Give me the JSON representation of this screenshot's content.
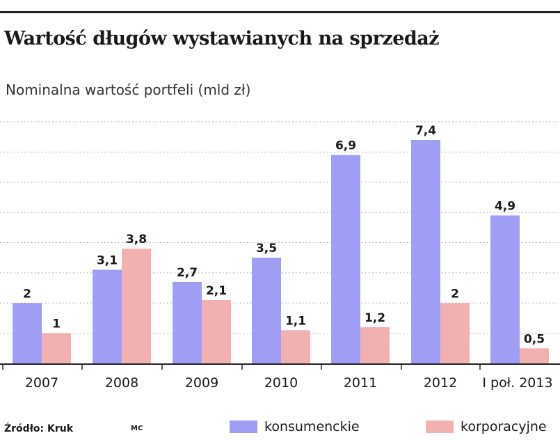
{
  "title": "Wartość długów wystawianych na sprzedaż",
  "subtitle": "Nominalna wartość portfeli (mld zł)",
  "source": "Źródło: Kruk",
  "credit": "MC",
  "colors": {
    "konsumenckie": "#9f9ef4",
    "korporacyjne": "#f2b1b1",
    "gridline": "#9a9a9a",
    "axis": "#222222"
  },
  "chart_data": {
    "type": "bar",
    "title": "Wartość długów wystawianych na sprzedaż",
    "subtitle": "Nominalna wartość portfeli (mld zł)",
    "categories": [
      "2007",
      "2008",
      "2009",
      "2010",
      "2011",
      "2012",
      "I poł. 2013"
    ],
    "series": [
      {
        "name": "konsumenckie",
        "values": [
          2,
          3.1,
          2.7,
          3.5,
          6.9,
          7.4,
          4.9
        ],
        "labels": [
          "2",
          "3,1",
          "2,7",
          "3,5",
          "6,9",
          "7,4",
          "4,9"
        ]
      },
      {
        "name": "korporacyjne",
        "values": [
          1,
          3.8,
          2.1,
          1.1,
          1.2,
          2,
          0.5
        ],
        "labels": [
          "1",
          "3,8",
          "2,1",
          "1,1",
          "1,2",
          "2",
          "0,5"
        ]
      }
    ],
    "ylim": [
      0,
      8
    ],
    "grid": true,
    "legend": "bottom"
  }
}
